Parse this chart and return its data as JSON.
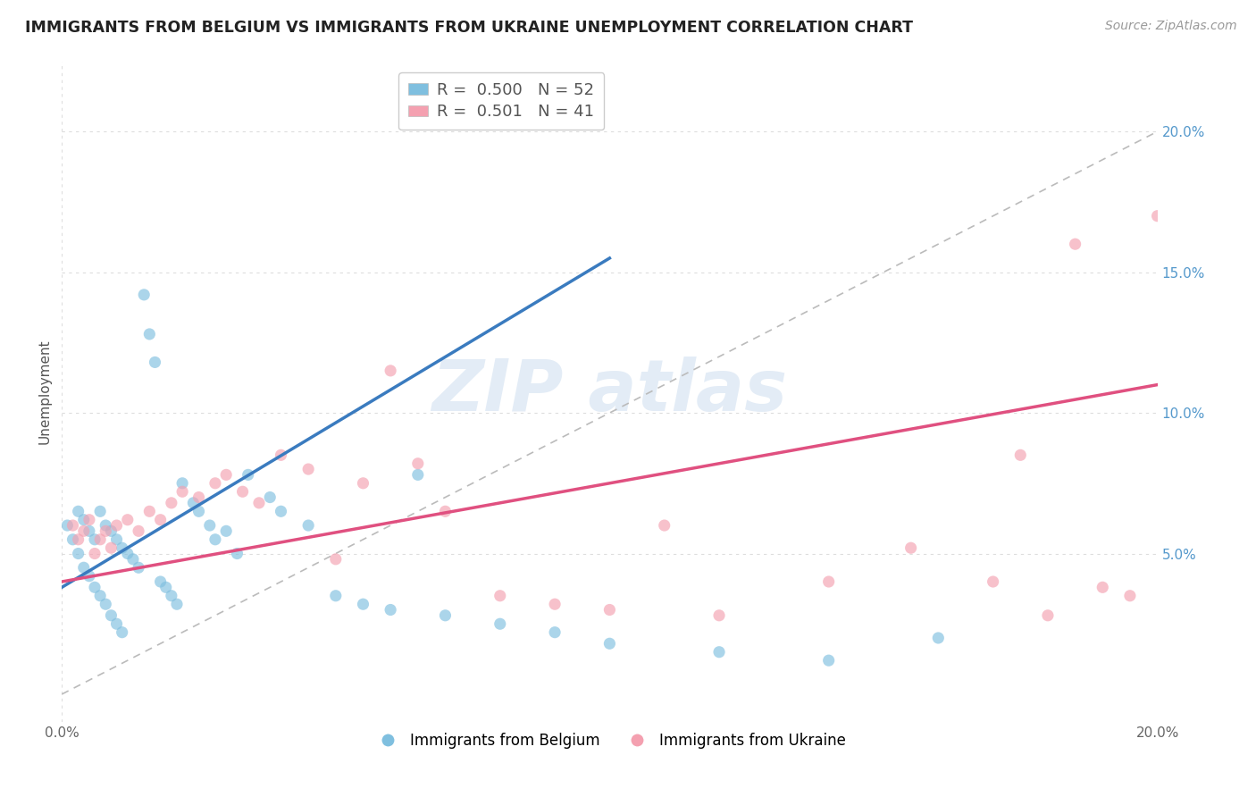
{
  "title": "IMMIGRANTS FROM BELGIUM VS IMMIGRANTS FROM UKRAINE UNEMPLOYMENT CORRELATION CHART",
  "source": "Source: ZipAtlas.com",
  "ylabel": "Unemployment",
  "belgium_r": 0.5,
  "belgium_n": 52,
  "ukraine_r": 0.501,
  "ukraine_n": 41,
  "xlim": [
    0.0,
    0.2
  ],
  "ylim": [
    -0.01,
    0.225
  ],
  "yticks": [
    0.05,
    0.1,
    0.15,
    0.2
  ],
  "ytick_labels": [
    "5.0%",
    "10.0%",
    "15.0%",
    "20.0%"
  ],
  "belgium_color": "#7fbfdf",
  "ukraine_color": "#f4a0b0",
  "belgium_line_color": "#3a7bbf",
  "ukraine_line_color": "#e05080",
  "diagonal_color": "#bbbbbb",
  "background_color": "#ffffff",
  "grid_color": "#dddddd",
  "belgium_scatter_x": [
    0.001,
    0.002,
    0.003,
    0.003,
    0.004,
    0.004,
    0.005,
    0.005,
    0.006,
    0.006,
    0.007,
    0.007,
    0.008,
    0.008,
    0.009,
    0.009,
    0.01,
    0.01,
    0.011,
    0.011,
    0.012,
    0.013,
    0.014,
    0.015,
    0.016,
    0.017,
    0.018,
    0.019,
    0.02,
    0.021,
    0.022,
    0.024,
    0.025,
    0.027,
    0.028,
    0.03,
    0.032,
    0.034,
    0.038,
    0.04,
    0.045,
    0.05,
    0.055,
    0.06,
    0.065,
    0.07,
    0.08,
    0.09,
    0.1,
    0.12,
    0.14,
    0.16
  ],
  "belgium_scatter_y": [
    0.06,
    0.055,
    0.065,
    0.05,
    0.062,
    0.045,
    0.058,
    0.042,
    0.055,
    0.038,
    0.065,
    0.035,
    0.06,
    0.032,
    0.058,
    0.028,
    0.055,
    0.025,
    0.052,
    0.022,
    0.05,
    0.048,
    0.045,
    0.142,
    0.128,
    0.118,
    0.04,
    0.038,
    0.035,
    0.032,
    0.075,
    0.068,
    0.065,
    0.06,
    0.055,
    0.058,
    0.05,
    0.078,
    0.07,
    0.065,
    0.06,
    0.035,
    0.032,
    0.03,
    0.078,
    0.028,
    0.025,
    0.022,
    0.018,
    0.015,
    0.012,
    0.02
  ],
  "ukraine_scatter_x": [
    0.002,
    0.003,
    0.004,
    0.005,
    0.006,
    0.007,
    0.008,
    0.009,
    0.01,
    0.012,
    0.014,
    0.016,
    0.018,
    0.02,
    0.022,
    0.025,
    0.028,
    0.03,
    0.033,
    0.036,
    0.04,
    0.045,
    0.05,
    0.055,
    0.06,
    0.065,
    0.07,
    0.08,
    0.09,
    0.1,
    0.11,
    0.12,
    0.14,
    0.155,
    0.17,
    0.175,
    0.18,
    0.185,
    0.19,
    0.195,
    0.2
  ],
  "ukraine_scatter_y": [
    0.06,
    0.055,
    0.058,
    0.062,
    0.05,
    0.055,
    0.058,
    0.052,
    0.06,
    0.062,
    0.058,
    0.065,
    0.062,
    0.068,
    0.072,
    0.07,
    0.075,
    0.078,
    0.072,
    0.068,
    0.085,
    0.08,
    0.048,
    0.075,
    0.115,
    0.082,
    0.065,
    0.035,
    0.032,
    0.03,
    0.06,
    0.028,
    0.04,
    0.052,
    0.04,
    0.085,
    0.028,
    0.16,
    0.038,
    0.035,
    0.17
  ],
  "belgium_line_x0": 0.0,
  "belgium_line_y0": 0.038,
  "belgium_line_x1": 0.1,
  "belgium_line_y1": 0.155,
  "ukraine_line_x0": 0.0,
  "ukraine_line_y0": 0.04,
  "ukraine_line_x1": 0.2,
  "ukraine_line_y1": 0.11
}
